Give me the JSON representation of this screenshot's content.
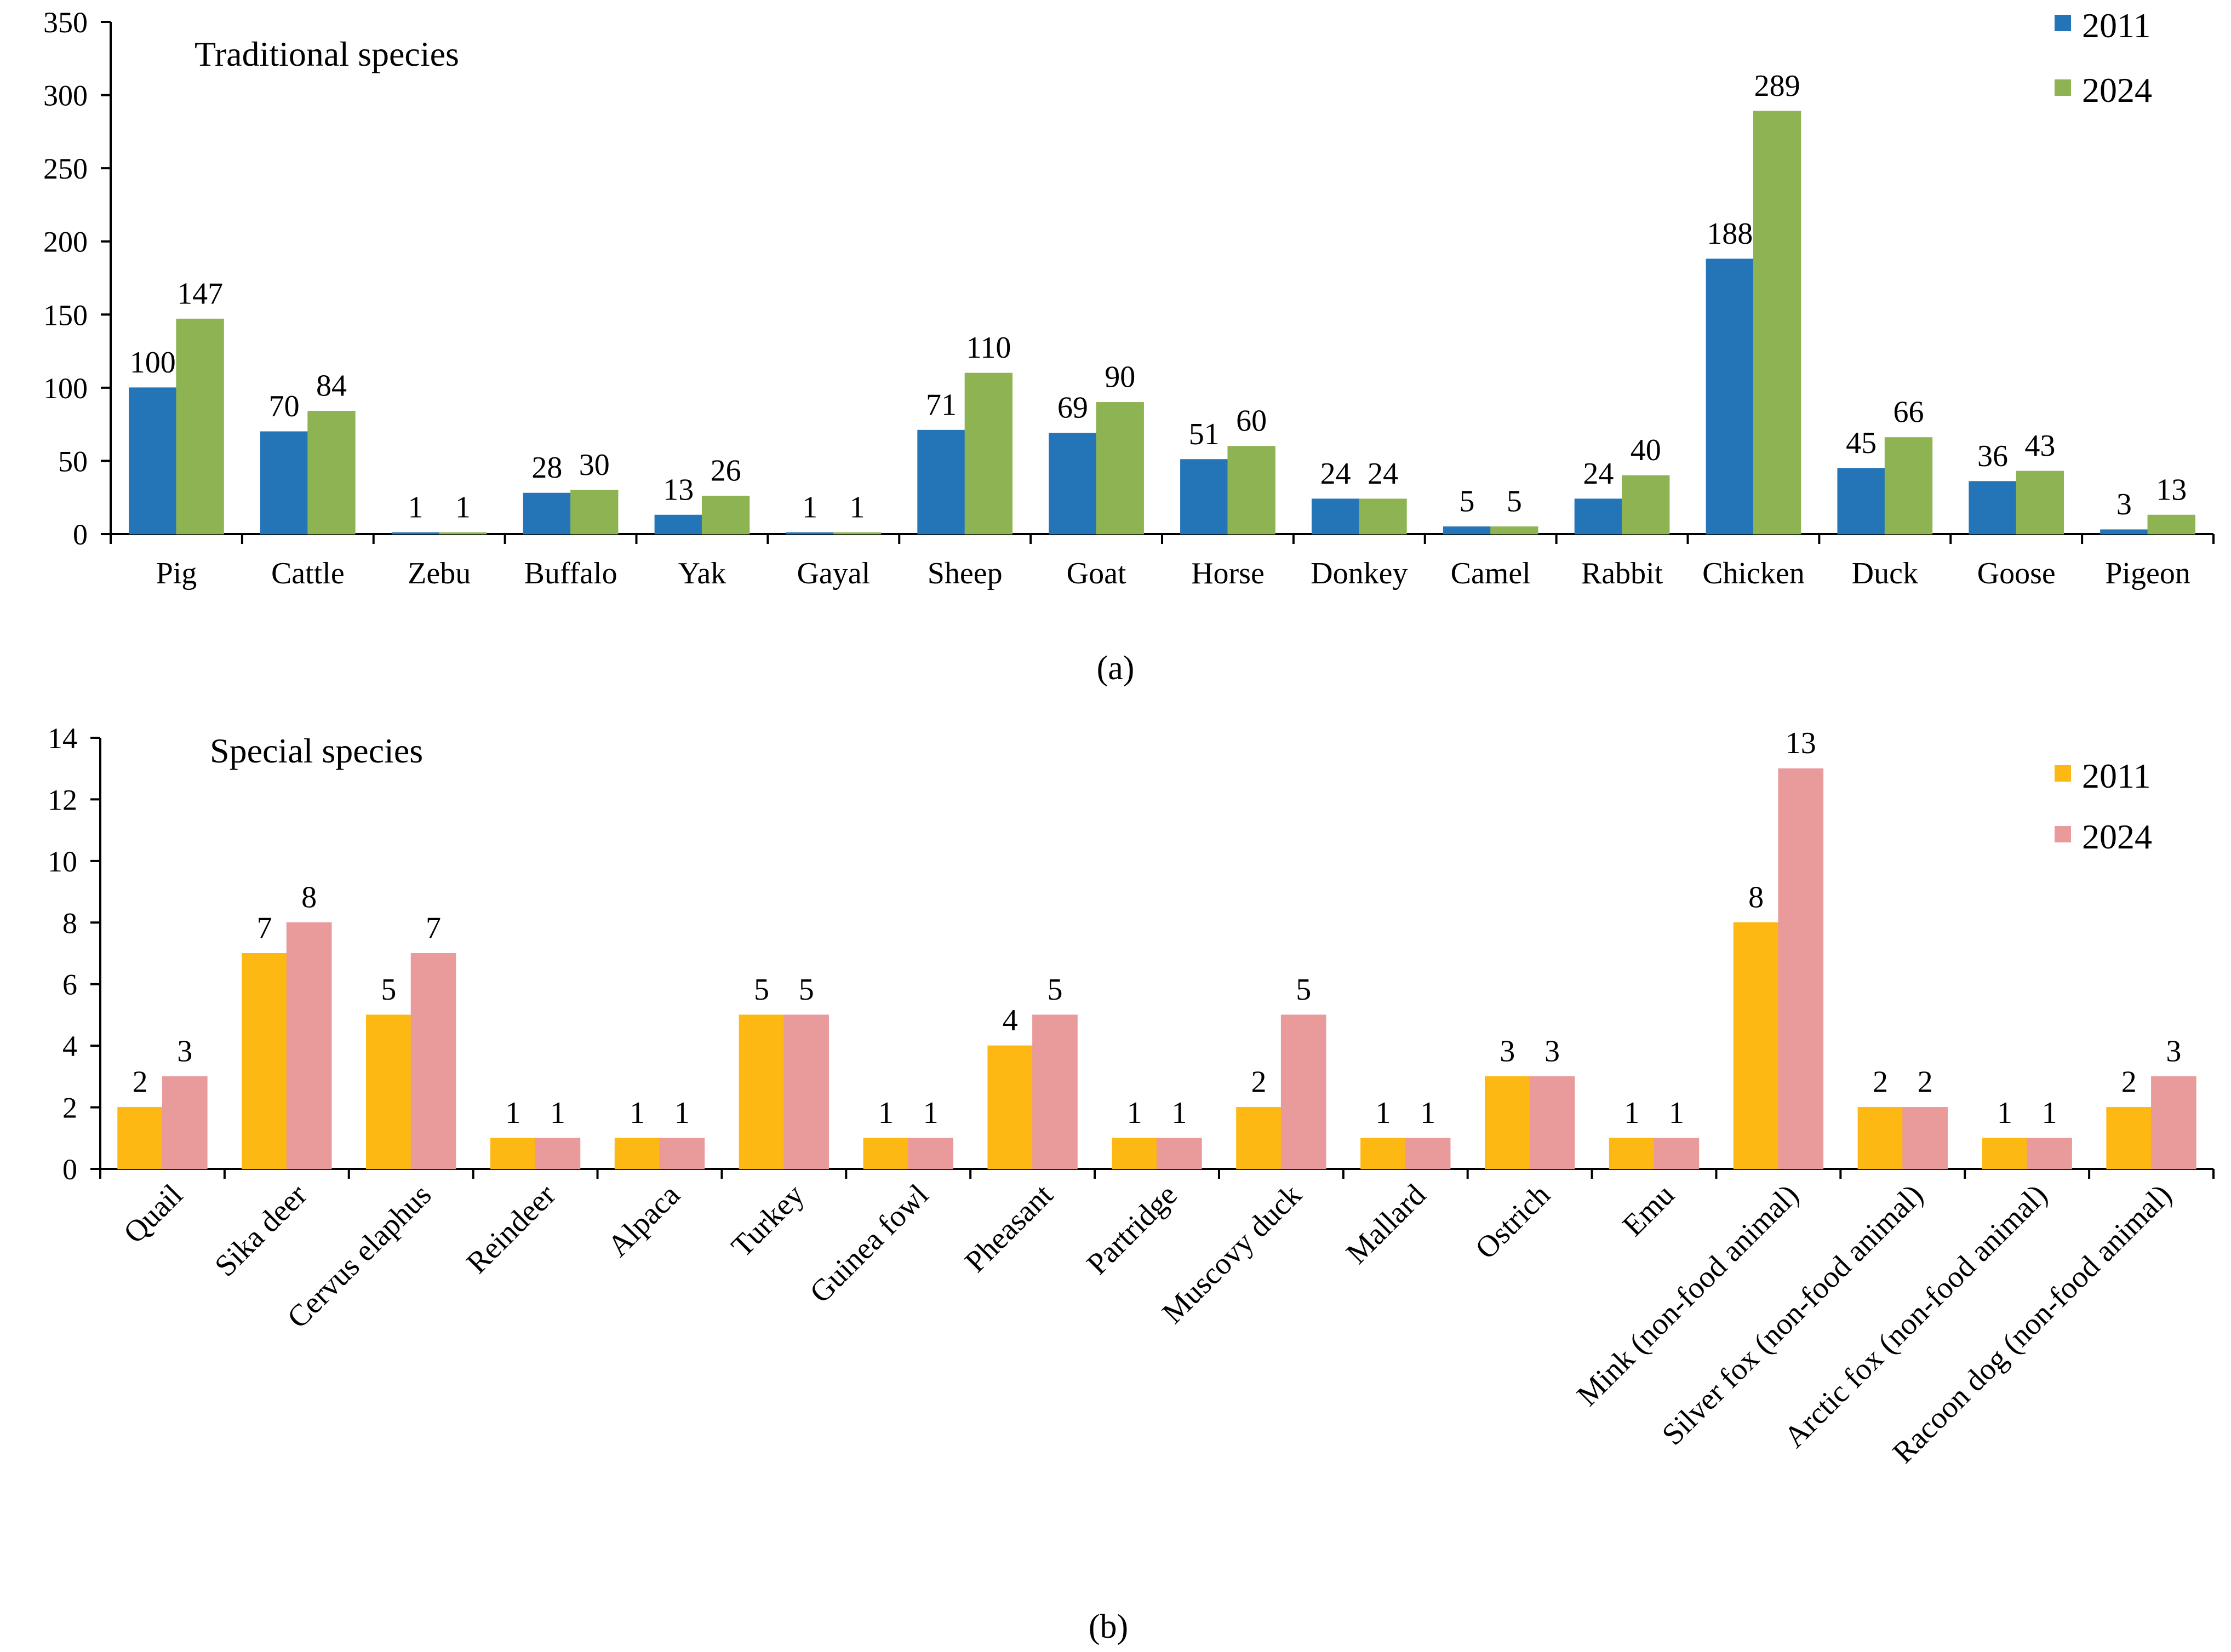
{
  "chart_data": [
    {
      "type": "bar",
      "title": "Traditional species",
      "caption": "(a)",
      "xlabel": "",
      "ylabel": "",
      "ylim": [
        0,
        350
      ],
      "yticks": [
        0,
        50,
        100,
        150,
        200,
        250,
        300,
        350
      ],
      "categories": [
        "Pig",
        "Cattle",
        "Zebu",
        "Buffalo",
        "Yak",
        "Gayal",
        "Sheep",
        "Goat",
        "Horse",
        "Donkey",
        "Camel",
        "Rabbit",
        "Chicken",
        "Duck",
        "Goose",
        "Pigeon"
      ],
      "series": [
        {
          "name": "2011",
          "color": "#2475b8",
          "values": [
            100,
            70,
            1,
            28,
            13,
            1,
            71,
            69,
            51,
            24,
            5,
            24,
            188,
            45,
            36,
            3
          ]
        },
        {
          "name": "2024",
          "color": "#8db353",
          "values": [
            147,
            84,
            1,
            30,
            26,
            1,
            110,
            90,
            60,
            24,
            5,
            40,
            289,
            66,
            43,
            13
          ]
        }
      ],
      "legend": "top-right",
      "grid": false
    },
    {
      "type": "bar",
      "title": "Special species",
      "caption": "(b)",
      "xlabel": "",
      "ylabel": "",
      "ylim": [
        0,
        14
      ],
      "yticks": [
        0,
        2,
        4,
        6,
        8,
        10,
        12,
        14
      ],
      "categories": [
        "Quail",
        "Sika deer",
        "Cervus elaphus",
        "Reindeer",
        "Alpaca",
        "Turkey",
        "Guinea fowl",
        "Pheasant",
        "Partridge",
        "Muscovy duck",
        "Mallard",
        "Ostrich",
        "Emu",
        "Mink (non-food animal)",
        "Silver fox (non-food animal)",
        "Arctic fox (non-food animal)",
        "Racoon dog (non-food animal)"
      ],
      "series": [
        {
          "name": "2011",
          "color": "#fdb813",
          "values": [
            2,
            7,
            5,
            1,
            1,
            5,
            1,
            4,
            1,
            2,
            1,
            3,
            1,
            8,
            2,
            1,
            2
          ]
        },
        {
          "name": "2024",
          "color": "#e99a9b",
          "values": [
            3,
            8,
            7,
            1,
            1,
            5,
            1,
            5,
            1,
            5,
            1,
            3,
            1,
            13,
            2,
            1,
            3
          ]
        }
      ],
      "legend": "top-right",
      "grid": false
    }
  ]
}
